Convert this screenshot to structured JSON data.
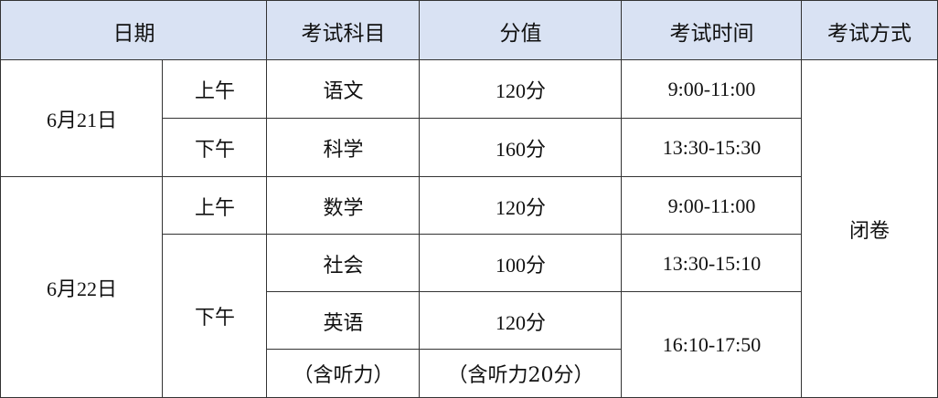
{
  "header": {
    "date": "日期",
    "subject": "考试科目",
    "score": "分值",
    "time": "考试时间",
    "method": "考试方式"
  },
  "days": [
    {
      "date": "6月21日",
      "sessions": [
        {
          "period": "上午",
          "subject": "语文",
          "score": "120分",
          "time": "9:00-11:00"
        },
        {
          "period": "下午",
          "subject": "科学",
          "score": "160分",
          "time": "13:30-15:30"
        }
      ]
    },
    {
      "date": "6月22日",
      "sessions": [
        {
          "period": "上午",
          "subject": "数学",
          "score": "120分",
          "time": "9:00-11:00"
        },
        {
          "period": "下午",
          "subject": "社会",
          "score": "100分",
          "time": "13:30-15:10"
        },
        {
          "subject": "英语",
          "score": "120分",
          "time": "16:10-17:50",
          "subject_note": "（含听力）",
          "score_note": "（含听力20分）"
        }
      ]
    }
  ],
  "method": "闭卷",
  "colors": {
    "header_bg": "#d9e2f3",
    "border": "#333333"
  }
}
